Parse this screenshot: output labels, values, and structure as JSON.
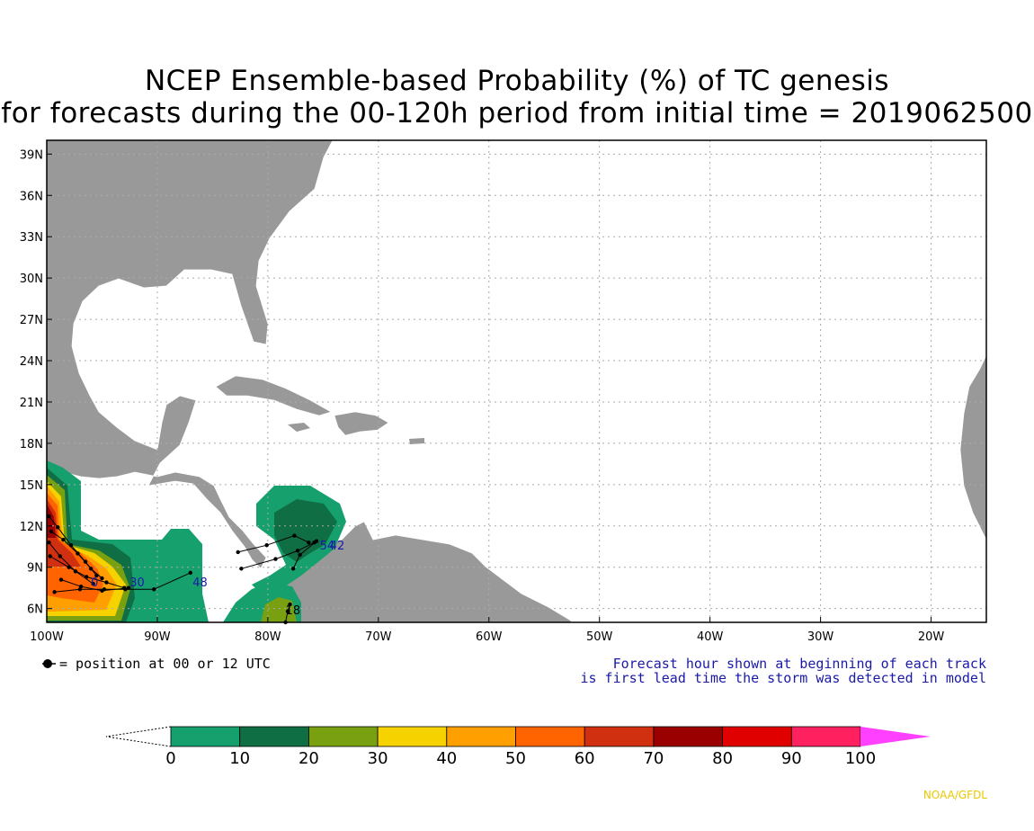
{
  "title": {
    "line1": "NCEP Ensemble-based Probability (%) of TC genesis",
    "line2": "for forecasts during the 00-120h period from initial time = 2019062500"
  },
  "map": {
    "lat_labels": [
      "39N",
      "36N",
      "33N",
      "30N",
      "27N",
      "24N",
      "21N",
      "18N",
      "15N",
      "12N",
      "9N",
      "6N"
    ],
    "lon_labels": [
      "100W",
      "90W",
      "80W",
      "70W",
      "60W",
      "50W",
      "40W",
      "30W",
      "20W"
    ],
    "lat_values": [
      39,
      36,
      33,
      30,
      27,
      24,
      21,
      18,
      15,
      12,
      9,
      6
    ],
    "lon_values": [
      -100,
      -90,
      -80,
      -70,
      -60,
      -50,
      -40,
      -30,
      -20
    ],
    "extent": {
      "lon_min": -100,
      "lon_max": -15,
      "lat_min": 5,
      "lat_max": 40
    },
    "land_color": "#999999",
    "ocean_color": "#ffffff",
    "track_labels": [
      {
        "text": "48",
        "lon": -86.8,
        "lat": 7.6,
        "color": "#1a1aa6"
      },
      {
        "text": "18",
        "lon": -78.4,
        "lat": 5.6,
        "color": "#000000"
      },
      {
        "text": "54",
        "lon": -75.3,
        "lat": 10.3,
        "color": "#1a1aa6"
      },
      {
        "text": "42",
        "lon": -74.4,
        "lat": 10.3,
        "color": "#1a1aa6"
      },
      {
        "text": "0",
        "lon": -96,
        "lat": 7.6,
        "color": "#1a1aa6"
      },
      {
        "text": "30",
        "lon": -92.5,
        "lat": 7.6,
        "color": "#1a1aa6"
      }
    ]
  },
  "legend": {
    "dot_text": "= position at 00 or 12 UTC",
    "note_line1": "Forecast hour shown at beginning of each track",
    "note_line2": "is first lead time the storm was detected in model"
  },
  "colorbar": {
    "ticks": [
      "0",
      "10",
      "20",
      "30",
      "40",
      "50",
      "60",
      "70",
      "80",
      "90",
      "100"
    ],
    "colors": [
      "#16a06e",
      "#0f6e44",
      "#79a010",
      "#f5d200",
      "#ffa000",
      "#ff6400",
      "#d03010",
      "#9a0000",
      "#e00000",
      "#ff2060"
    ],
    "overflow_color": "#ff40ff"
  },
  "credit": "NOAA/GFDL"
}
